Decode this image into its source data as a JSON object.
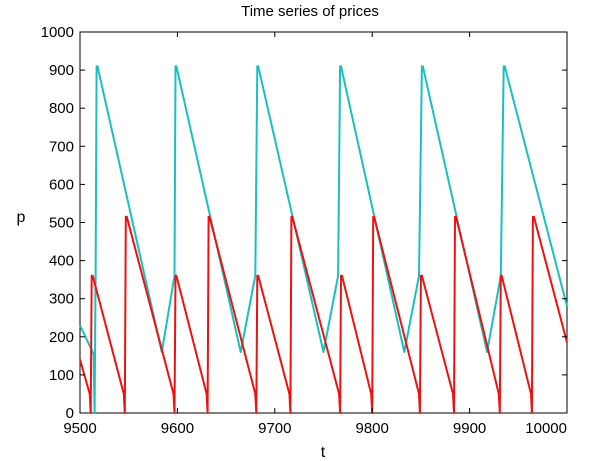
{
  "chart_data": {
    "type": "line",
    "title": "Time series of prices",
    "xlabel": "t",
    "ylabel": "p",
    "xlim": [
      9500,
      10000
    ],
    "ylim": [
      0,
      1000
    ],
    "xticks": [
      9500,
      9600,
      9700,
      9800,
      9900,
      10000
    ],
    "yticks": [
      0,
      100,
      200,
      300,
      400,
      500,
      600,
      700,
      800,
      900,
      1000
    ],
    "grid": false,
    "series": [
      {
        "color": "#19c0c0",
        "points": [
          [
            9500,
            230
          ],
          [
            9514,
            155
          ],
          [
            9515,
            0
          ],
          [
            9516,
            360
          ],
          [
            9517,
            910
          ],
          [
            9518,
            910
          ],
          [
            9584,
            160
          ],
          [
            9597,
            360
          ],
          [
            9598,
            910
          ],
          [
            9599,
            910
          ],
          [
            9665,
            160
          ],
          [
            9680,
            360
          ],
          [
            9682,
            910
          ],
          [
            9683,
            910
          ],
          [
            9750,
            160
          ],
          [
            9765,
            360
          ],
          [
            9767,
            910
          ],
          [
            9768,
            910
          ],
          [
            9833,
            160
          ],
          [
            9848,
            360
          ],
          [
            9851,
            910
          ],
          [
            9852,
            910
          ],
          [
            9918,
            160
          ],
          [
            9932,
            360
          ],
          [
            9935,
            910
          ],
          [
            9936,
            910
          ],
          [
            10000,
            280
          ]
        ]
      },
      {
        "color": "#ee1111",
        "points": [
          [
            9500,
            140
          ],
          [
            9510,
            50
          ],
          [
            9511,
            0
          ],
          [
            9512,
            360
          ],
          [
            9513,
            360
          ],
          [
            9545,
            50
          ],
          [
            9546,
            0
          ],
          [
            9547,
            515
          ],
          [
            9548,
            515
          ],
          [
            9596,
            50
          ],
          [
            9597,
            0
          ],
          [
            9598,
            360
          ],
          [
            9599,
            360
          ],
          [
            9630,
            50
          ],
          [
            9631,
            0
          ],
          [
            9632,
            515
          ],
          [
            9633,
            515
          ],
          [
            9680,
            50
          ],
          [
            9681,
            0
          ],
          [
            9682,
            360
          ],
          [
            9683,
            360
          ],
          [
            9715,
            50
          ],
          [
            9716,
            0
          ],
          [
            9717,
            515
          ],
          [
            9718,
            515
          ],
          [
            9766,
            50
          ],
          [
            9767,
            0
          ],
          [
            9768,
            360
          ],
          [
            9769,
            360
          ],
          [
            9799,
            50
          ],
          [
            9800,
            0
          ],
          [
            9801,
            515
          ],
          [
            9802,
            515
          ],
          [
            9848,
            50
          ],
          [
            9849,
            0
          ],
          [
            9850,
            360
          ],
          [
            9851,
            360
          ],
          [
            9883,
            50
          ],
          [
            9884,
            0
          ],
          [
            9885,
            515
          ],
          [
            9886,
            515
          ],
          [
            9930,
            50
          ],
          [
            9931,
            0
          ],
          [
            9932,
            360
          ],
          [
            9933,
            360
          ],
          [
            9963,
            50
          ],
          [
            9964,
            0
          ],
          [
            9965,
            515
          ],
          [
            9966,
            515
          ],
          [
            10000,
            185
          ]
        ]
      }
    ]
  }
}
